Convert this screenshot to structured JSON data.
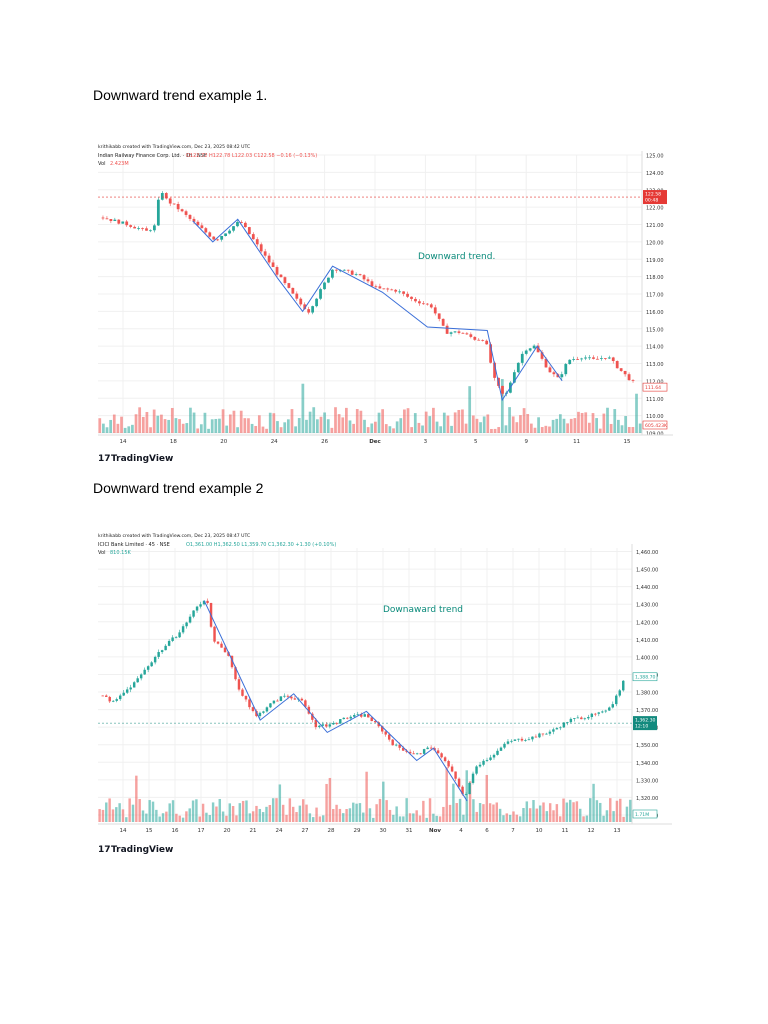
{
  "headings": [
    "Downward trend example 1.",
    "Downward trend example 2"
  ],
  "brand": "TradingView",
  "colors": {
    "up": "#26a69a",
    "down": "#ef5350",
    "trendline": "#3b6fd8",
    "annotation": "#0a8a7a",
    "grid": "#f0f0f0"
  },
  "chart_data": [
    {
      "type": "candlestick",
      "creator_line": "krithikabb created with TradingView.com, Dec 23, 2025 08:42 UTC",
      "symbol_line": "Indian Railway Finance Corp. Ltd. · 1h · NSE",
      "ohlc": {
        "o": "O122.72",
        "h": "H122.78",
        "l": "L122.03",
        "c": "C122.58",
        "chg": "−0.16 (−0.13%)"
      },
      "vol_label": "Vol",
      "vol_value": "2.423M",
      "annotation": "Downward trend.",
      "price_tag": "122.58",
      "time_tag": "00:48",
      "right_tag": "111.64",
      "vol_tag": "605.423K",
      "y_ticks": [
        "125.00",
        "124.00",
        "123.00",
        "122.00",
        "121.00",
        "120.00",
        "119.00",
        "118.00",
        "117.00",
        "116.00",
        "115.00",
        "114.00",
        "113.00",
        "112.00",
        "111.00",
        "110.00",
        "109.00"
      ],
      "ylim": [
        109,
        125
      ],
      "x_labels": [
        "14",
        "18",
        "20",
        "24",
        "26",
        "Dec",
        "3",
        "5",
        "9",
        "11",
        "15"
      ],
      "trendline": [
        [
          0.19,
          121.2
        ],
        [
          0.23,
          120.0
        ],
        [
          0.28,
          121.3
        ],
        [
          0.36,
          117.9
        ],
        [
          0.41,
          116.0
        ],
        [
          0.47,
          118.6
        ],
        [
          0.57,
          117.1
        ],
        [
          0.66,
          115.1
        ],
        [
          0.78,
          114.9
        ],
        [
          0.81,
          110.9
        ],
        [
          0.88,
          114.0
        ],
        [
          0.93,
          112.0
        ]
      ],
      "path": [
        [
          0.0,
          121.4
        ],
        [
          0.05,
          121.0
        ],
        [
          0.09,
          120.6
        ],
        [
          0.11,
          121.0
        ],
        [
          0.115,
          123.2
        ],
        [
          0.13,
          122.4
        ],
        [
          0.15,
          122.0
        ],
        [
          0.19,
          121.0
        ],
        [
          0.23,
          120.1
        ],
        [
          0.28,
          121.2
        ],
        [
          0.31,
          120.0
        ],
        [
          0.36,
          118.0
        ],
        [
          0.4,
          116.5
        ],
        [
          0.42,
          116.0
        ],
        [
          0.45,
          117.5
        ],
        [
          0.47,
          118.5
        ],
        [
          0.52,
          118.1
        ],
        [
          0.56,
          117.3
        ],
        [
          0.6,
          117.2
        ],
        [
          0.63,
          116.7
        ],
        [
          0.67,
          116.3
        ],
        [
          0.7,
          114.8
        ],
        [
          0.73,
          114.8
        ],
        [
          0.76,
          114.4
        ],
        [
          0.78,
          114.4
        ],
        [
          0.8,
          112.0
        ],
        [
          0.82,
          111.0
        ],
        [
          0.84,
          112.6
        ],
        [
          0.86,
          113.8
        ],
        [
          0.88,
          114.0
        ],
        [
          0.91,
          112.6
        ],
        [
          0.93,
          112.1
        ],
        [
          0.95,
          113.2
        ],
        [
          0.98,
          113.4
        ],
        [
          1.0,
          113.2
        ],
        [
          1.03,
          113.4
        ],
        [
          1.06,
          112.5
        ],
        [
          1.09,
          111.7
        ]
      ]
    },
    {
      "type": "candlestick",
      "creator_line": "krithikabb created with TradingView.com, Dec 23, 2025 08:47 UTC",
      "symbol_line": "ICICI Bank Limited · 45 · NSE",
      "ohlc": {
        "o": "O1,361.00",
        "h": "H1,362.50",
        "l": "L1,359.70",
        "c": "C1,362.30",
        "chg": "+1.30 (+0.10%)"
      },
      "vol_label": "Vol",
      "vol_value": "810.15K",
      "annotation": "Downaward trend",
      "price_tag": "1,362.30",
      "time_tag": "12:10",
      "right_tag": "1,388.70",
      "vol_tag": "1.71M",
      "y_ticks": [
        "1,460.00",
        "1,450.00",
        "1,440.00",
        "1,430.00",
        "1,420.00",
        "1,410.00",
        "1,400.00",
        "1,390.00",
        "1,380.00",
        "1,370.00",
        "1,360.00",
        "1,350.00",
        "1,340.00",
        "1,330.00",
        "1,320.00",
        "1,310.00"
      ],
      "ylim": [
        1306,
        1462
      ],
      "x_labels": [
        "14",
        "15",
        "16",
        "17",
        "20",
        "21",
        "24",
        "27",
        "28",
        "29",
        "30",
        "31",
        "Nov",
        "4",
        "6",
        "7",
        "10",
        "11",
        "12",
        "13"
      ],
      "trendline": [
        [
          0.19,
          1432
        ],
        [
          0.29,
          1364
        ],
        [
          0.35,
          1379
        ],
        [
          0.41,
          1357
        ],
        [
          0.48,
          1369
        ],
        [
          0.57,
          1341
        ],
        [
          0.6,
          1348
        ],
        [
          0.66,
          1318
        ]
      ],
      "path": [
        [
          0.0,
          1378
        ],
        [
          0.02,
          1374
        ],
        [
          0.06,
          1386
        ],
        [
          0.1,
          1402
        ],
        [
          0.14,
          1414
        ],
        [
          0.17,
          1428
        ],
        [
          0.19,
          1434
        ],
        [
          0.2,
          1410
        ],
        [
          0.23,
          1400
        ],
        [
          0.25,
          1380
        ],
        [
          0.28,
          1366
        ],
        [
          0.3,
          1372
        ],
        [
          0.33,
          1378
        ],
        [
          0.36,
          1376
        ],
        [
          0.39,
          1360
        ],
        [
          0.42,
          1362
        ],
        [
          0.45,
          1366
        ],
        [
          0.48,
          1367
        ],
        [
          0.51,
          1358
        ],
        [
          0.53,
          1350
        ],
        [
          0.57,
          1344
        ],
        [
          0.6,
          1349
        ],
        [
          0.63,
          1338
        ],
        [
          0.66,
          1320
        ],
        [
          0.68,
          1338
        ],
        [
          0.71,
          1344
        ],
        [
          0.74,
          1352
        ],
        [
          0.78,
          1354
        ],
        [
          0.82,
          1358
        ],
        [
          0.85,
          1364
        ],
        [
          0.88,
          1366
        ],
        [
          0.91,
          1368
        ],
        [
          0.93,
          1374
        ],
        [
          0.955,
          1390
        ]
      ]
    }
  ]
}
